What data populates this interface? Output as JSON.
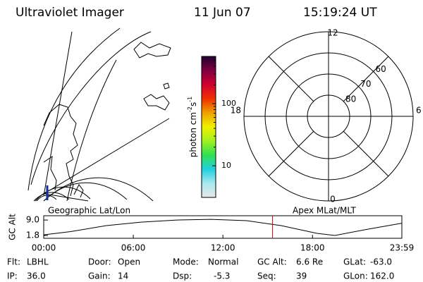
{
  "header": {
    "title": "Ultraviolet Imager",
    "date": "11 Jun 07",
    "time": "15:19:24 UT"
  },
  "colorbar": {
    "label": [
      "photon cm",
      "-2",
      "s",
      "-1"
    ],
    "log": true,
    "lim": [
      3.1,
      575
    ],
    "ticks": [
      10,
      100
    ],
    "colors": [
      "#e8e8e8",
      "#a8e8f0",
      "#20d0e0",
      "#30e050",
      "#a0f020",
      "#f0f000",
      "#f0a000",
      "#f03000",
      "#d00030",
      "#800040",
      "#200030"
    ]
  },
  "map": {
    "label": "Geographic Lat/Lon"
  },
  "polar": {
    "label": "Apex MLat/MLT",
    "rlim": [
      90,
      50
    ],
    "rings": [
      60,
      70,
      80
    ],
    "hours": [
      {
        "value": 12,
        "label": "12"
      },
      {
        "value": 18,
        "label": "18"
      },
      {
        "value": 6,
        "label": "6"
      },
      {
        "value": 0,
        "label": "0"
      }
    ]
  },
  "chart_data": {
    "type": "line",
    "y_label": "GC Alt",
    "x": [
      0,
      1.8,
      4.2,
      6.5,
      8.9,
      11.2,
      13.6,
      15.9,
      18.3,
      19.5,
      21.6,
      23.983
    ],
    "values": [
      2.1,
      3.6,
      6.4,
      8.0,
      9.0,
      9.3,
      8.7,
      6.4,
      2.8,
      1.8,
      4.6,
      7.5
    ],
    "color": "#000000",
    "marker_x": 15.323,
    "marker_color": "#e00000",
    "xlim": [
      0,
      23.983
    ],
    "xticks": [
      {
        "value": 0,
        "label": "00:00"
      },
      {
        "value": 6,
        "label": "06:00"
      },
      {
        "value": 12,
        "label": "12:00"
      },
      {
        "value": 18,
        "label": "18:00"
      },
      {
        "value": 23.983,
        "label": "23:59"
      }
    ],
    "ylim": [
      0.5,
      11.0
    ],
    "yticks": [
      {
        "value": 9.0,
        "label": "9.0"
      },
      {
        "value": 1.8,
        "label": "1.8"
      }
    ]
  },
  "status": [
    [
      {
        "label": "Flt:",
        "value": "LBHL"
      },
      {
        "label": "Door:",
        "value": "Open"
      },
      {
        "label": "Mode:",
        "value": "Normal"
      },
      {
        "label": "GC Alt:",
        "value": "6.6 Re"
      },
      {
        "label": "GLat:",
        "value": "-63.0"
      }
    ],
    [
      {
        "label": "IP:",
        "value": "36.0"
      },
      {
        "label": "Gain:",
        "value": "14"
      },
      {
        "label": "Dsp:",
        "value": "-5.3"
      },
      {
        "label": "Seq:",
        "value": "39"
      },
      {
        "label": "GLon:",
        "value": "162.0"
      }
    ]
  ]
}
